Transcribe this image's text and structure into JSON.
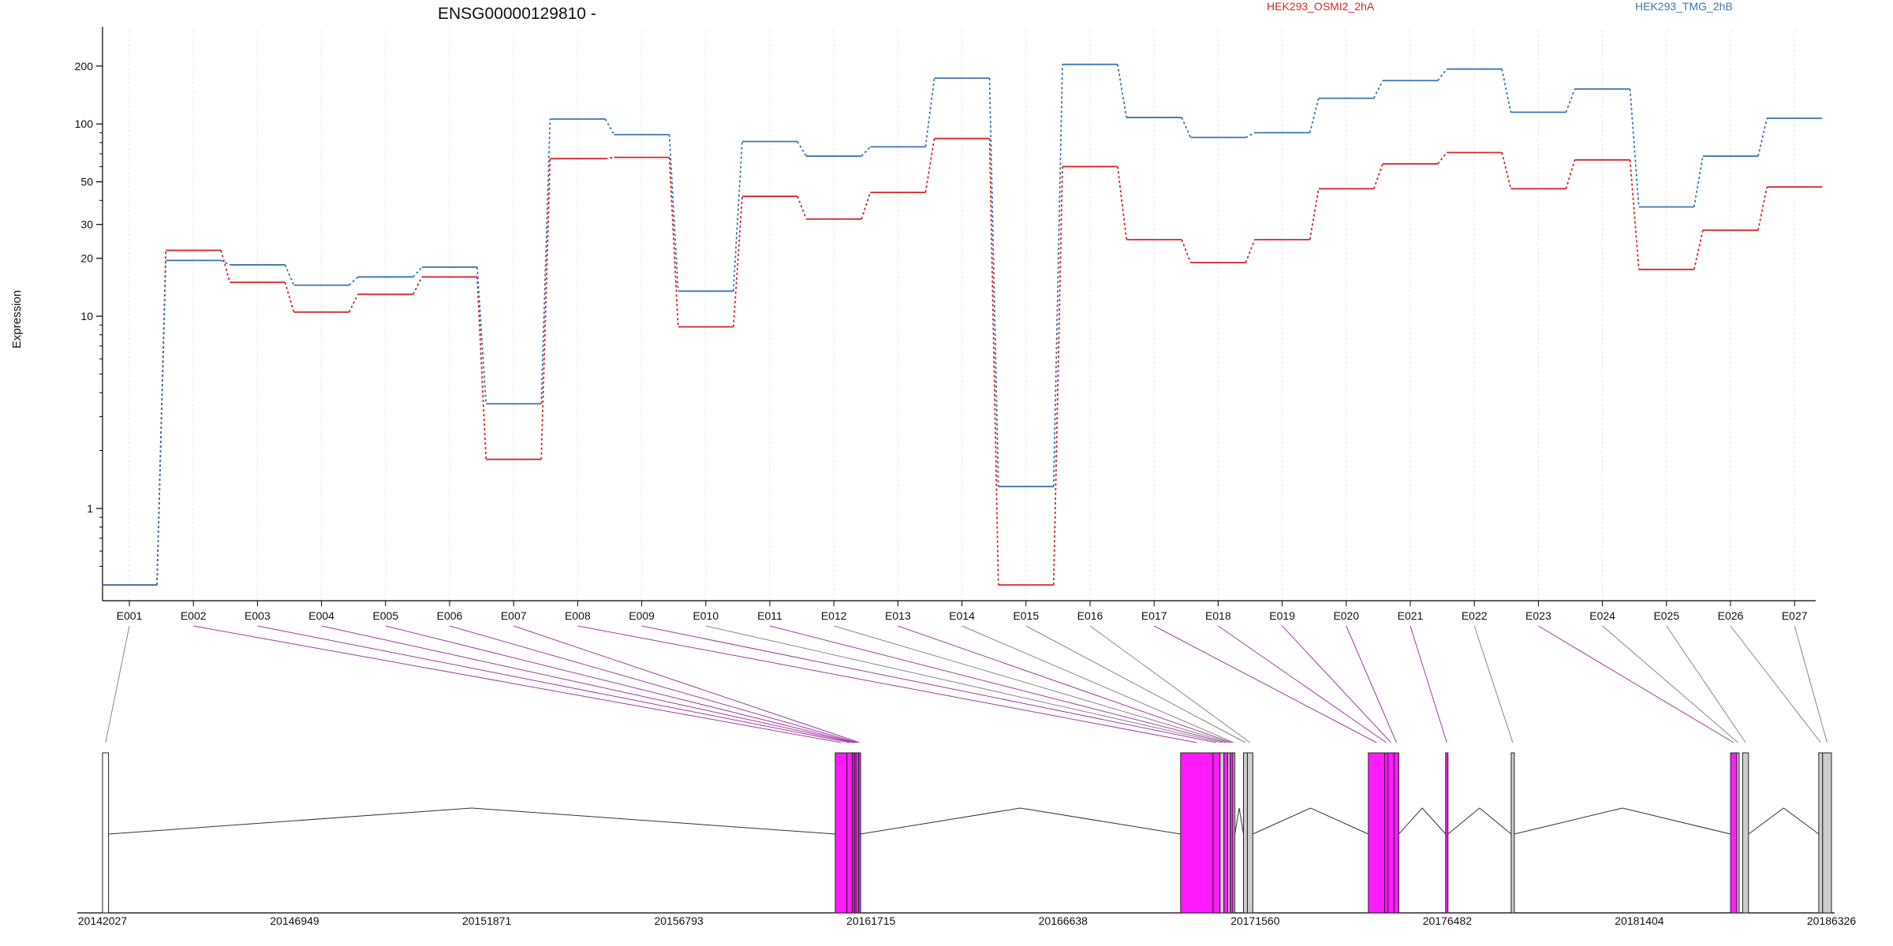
{
  "chart_data": {
    "type": "line",
    "title": "ENSG00000129810 -",
    "ylabel": "Expression",
    "yscale": "log",
    "ylim": [
      0.4,
      270
    ],
    "yticks": [
      1,
      10,
      20,
      30,
      50,
      100,
      200
    ],
    "grid": "vertical dashed at each exon",
    "legend_position": "top-right",
    "categories": [
      "E001",
      "E002",
      "E003",
      "E004",
      "E005",
      "E006",
      "E007",
      "E008",
      "E009",
      "E010",
      "E011",
      "E012",
      "E013",
      "E014",
      "E015",
      "E016",
      "E017",
      "E018",
      "E019",
      "E020",
      "E021",
      "E022",
      "E023",
      "E024",
      "E025",
      "E026",
      "E027"
    ],
    "series": [
      {
        "name": "HEK293_OSMI2_2hA",
        "color": "#d62728",
        "values": [
          0.4,
          22,
          15,
          10.5,
          13,
          16,
          1.8,
          66,
          67,
          8.8,
          42,
          32,
          44,
          84,
          0.4,
          60,
          25,
          19,
          25,
          46,
          62,
          71,
          46,
          65,
          17.5,
          28,
          47
        ]
      },
      {
        "name": "HEK293_TMG_2hB",
        "color": "#3b75af",
        "values": [
          0.4,
          19.5,
          18.5,
          14.5,
          16,
          18,
          3.5,
          106,
          88,
          13.5,
          81,
          68,
          76,
          173,
          1.3,
          204,
          108,
          85,
          90,
          136,
          168,
          193,
          115,
          152,
          37,
          68,
          107
        ]
      }
    ],
    "gene_model": {
      "coordinates": [
        "20142027",
        "20146949",
        "20151871",
        "20156793",
        "20161715",
        "20166638",
        "20171560",
        "20176482",
        "20181404",
        "20186326"
      ],
      "coord_range": [
        20142027,
        20186326
      ],
      "highlight_color": "#ff1aff",
      "exons": [
        {
          "id": "E001",
          "start": 20142027,
          "end": 20142180,
          "highlight": false
        },
        {
          "id": "E002",
          "start": 20160800,
          "end": 20161100,
          "highlight": true
        },
        {
          "id": "E003",
          "start": 20161100,
          "end": 20161240,
          "highlight": true
        },
        {
          "id": "E004",
          "start": 20161240,
          "end": 20161290,
          "highlight": true
        },
        {
          "id": "E005",
          "start": 20161290,
          "end": 20161330,
          "highlight": true
        },
        {
          "id": "E006",
          "start": 20161330,
          "end": 20161400,
          "highlight": true
        },
        {
          "id": "E007",
          "start": 20161400,
          "end": 20161440,
          "highlight": true
        },
        {
          "id": "E008",
          "start": 20169650,
          "end": 20170480,
          "highlight": true
        },
        {
          "id": "E009",
          "start": 20170480,
          "end": 20170660,
          "highlight": true
        },
        {
          "id": "E010",
          "start": 20170660,
          "end": 20170760,
          "highlight": false
        },
        {
          "id": "E011",
          "start": 20170760,
          "end": 20170860,
          "highlight": true
        },
        {
          "id": "E012",
          "start": 20170860,
          "end": 20170920,
          "highlight": false
        },
        {
          "id": "E013",
          "start": 20170920,
          "end": 20170990,
          "highlight": true
        },
        {
          "id": "E014",
          "start": 20170990,
          "end": 20171040,
          "highlight": false
        },
        {
          "id": "E015",
          "start": 20171260,
          "end": 20171360,
          "highlight": false
        },
        {
          "id": "E016",
          "start": 20171360,
          "end": 20171500,
          "highlight": false
        },
        {
          "id": "E017",
          "start": 20174460,
          "end": 20174880,
          "highlight": true
        },
        {
          "id": "E018",
          "start": 20174880,
          "end": 20174960,
          "highlight": true
        },
        {
          "id": "E019",
          "start": 20174960,
          "end": 20175120,
          "highlight": true
        },
        {
          "id": "E020",
          "start": 20175120,
          "end": 20175240,
          "highlight": true
        },
        {
          "id": "E021",
          "start": 20176440,
          "end": 20176500,
          "highlight": true
        },
        {
          "id": "E022",
          "start": 20178120,
          "end": 20178200,
          "highlight": false
        },
        {
          "id": "E023",
          "start": 20183740,
          "end": 20183900,
          "highlight": true
        },
        {
          "id": "E024",
          "start": 20183900,
          "end": 20183960,
          "highlight": false
        },
        {
          "id": "E025",
          "start": 20184050,
          "end": 20184200,
          "highlight": false
        },
        {
          "id": "E026",
          "start": 20186000,
          "end": 20186100,
          "highlight": false
        },
        {
          "id": "E027",
          "start": 20186100,
          "end": 20186326,
          "highlight": false
        }
      ],
      "intron_arcs": [
        [
          20142180,
          20160800
        ],
        [
          20161440,
          20169650
        ],
        [
          20171040,
          20171260
        ],
        [
          20171500,
          20174460
        ],
        [
          20175240,
          20176440
        ],
        [
          20176500,
          20178120
        ],
        [
          20178200,
          20183740
        ],
        [
          20184200,
          20186000
        ]
      ]
    }
  }
}
